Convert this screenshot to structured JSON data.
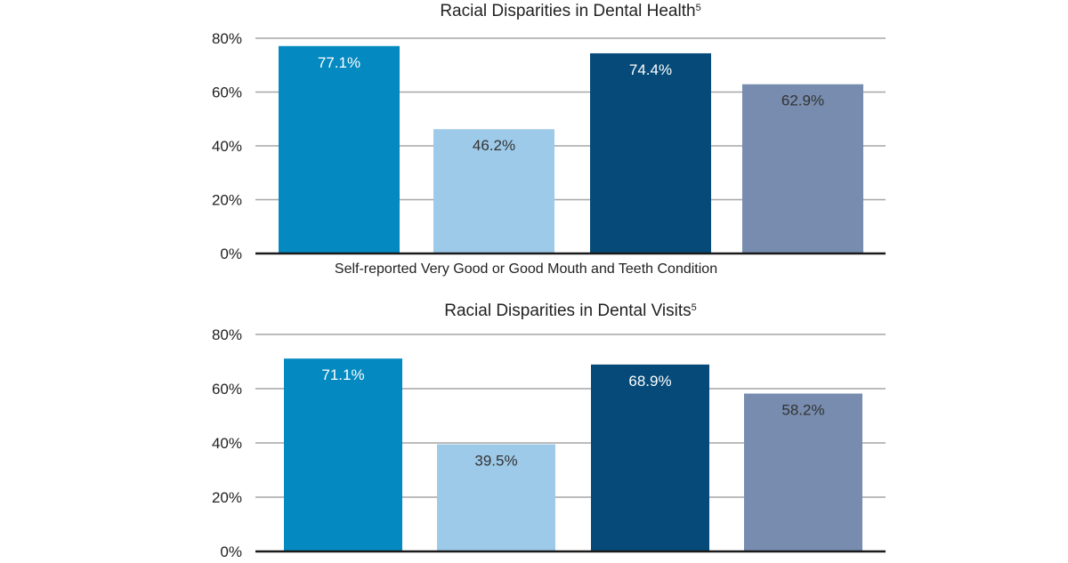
{
  "chart_data": [
    {
      "type": "bar",
      "title": "Racial Disparities in Dental Health",
      "title_superscript": "5",
      "xlabel": "Self-reported Very Good or Good Mouth and Teeth Condition",
      "ylabel": "",
      "ylim": [
        0,
        80
      ],
      "yticks": [
        "0%",
        "20%",
        "40%",
        "60%",
        "80%"
      ],
      "grid": true,
      "values": [
        77.1,
        46.2,
        74.4,
        62.9
      ],
      "value_labels": [
        "77.1%",
        "46.2%",
        "74.4%",
        "62.9%"
      ],
      "colors": [
        "#0489c1",
        "#9ecae9",
        "#054a78",
        "#778caf"
      ],
      "label_colors": [
        "#ffffff",
        "#333333",
        "#ffffff",
        "#333333"
      ]
    },
    {
      "type": "bar",
      "title": "Racial Disparities in Dental Visits",
      "title_superscript": "5",
      "xlabel": "",
      "ylabel": "",
      "ylim": [
        0,
        80
      ],
      "yticks": [
        "0%",
        "20%",
        "40%",
        "60%",
        "80%"
      ],
      "grid": true,
      "values": [
        71.1,
        39.5,
        68.9,
        58.2
      ],
      "value_labels": [
        "71.1%",
        "39.5%",
        "68.9%",
        "58.2%"
      ],
      "colors": [
        "#0489c1",
        "#9ecae9",
        "#054a78",
        "#778caf"
      ],
      "label_colors": [
        "#ffffff",
        "#333333",
        "#ffffff",
        "#333333"
      ]
    }
  ]
}
